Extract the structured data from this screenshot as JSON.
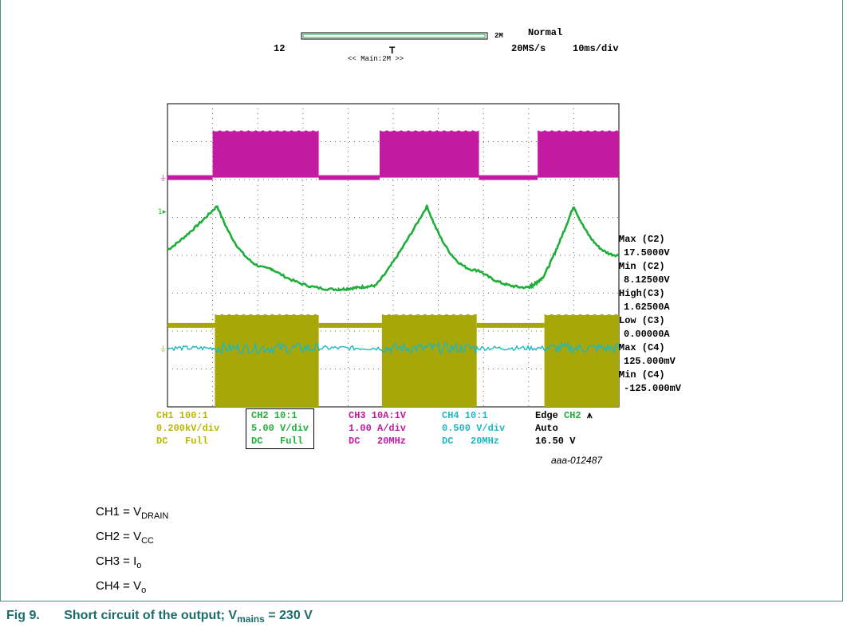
{
  "scope": {
    "header": {
      "left_num": "12",
      "acq_mode": "Normal",
      "sample_rate": "20MS/s",
      "timebase": "10ms/div",
      "record_label": "2M",
      "window_label": "<< Main:2M >>"
    },
    "measurements": [
      {
        "label": "Max (C2)",
        "value": "17.5000V"
      },
      {
        "label": "Min (C2)",
        "value": "8.12500V"
      },
      {
        "label": "High(C3)",
        "value": "1.62500A"
      },
      {
        "label": "Low (C3)",
        "value": "0.00000A"
      },
      {
        "label": "Max (C4)",
        "value": "125.000mV"
      },
      {
        "label": "Min (C4)",
        "value": "-125.000mV"
      }
    ],
    "channels": [
      {
        "line1": "CH1 100:1",
        "line2": "0.200kV/div",
        "line3": "DC   Full",
        "color": "#b8b800"
      },
      {
        "line1": "CH2 10:1",
        "line2": "5.00 V/div",
        "line3": "DC   Full",
        "color": "#1fae3a"
      },
      {
        "line1": "CH3 10A:1V",
        "line2": "1.00 A/div",
        "line3": "DC   20MHz",
        "color": "#c21aa0"
      },
      {
        "line1": "CH4 10:1",
        "line2": "0.500 V/div",
        "line3": "DC   20MHz",
        "color": "#1cb8c2"
      }
    ],
    "trigger": {
      "line1": "Edge",
      "source": "CH2",
      "line2": "Auto",
      "line3": "16.50 V"
    },
    "figure_id": "aaa-012487"
  },
  "legend": [
    {
      "pre": "CH1 = V",
      "sub": "DRAIN"
    },
    {
      "pre": "CH2 = V",
      "sub": "CC"
    },
    {
      "pre": "CH3 = I",
      "sub": "o"
    },
    {
      "pre": "CH4 = V",
      "sub": "o"
    }
  ],
  "caption": {
    "fig": "Fig 9.",
    "text": "Short circuit of the output; V",
    "sub": "mains",
    "tail": " = 230 V"
  },
  "chart_data": {
    "type": "line",
    "xlabel": "",
    "ylabel": "",
    "time_per_div_ms": 10,
    "divisions": {
      "x": 10,
      "y": 8
    },
    "grid": true,
    "series": [
      {
        "name": "CH3",
        "color": "#c21aa0",
        "kind": "burst",
        "segments_div": [
          [
            1.0,
            3.35
          ],
          [
            4.7,
            6.9
          ],
          [
            8.2,
            10.0
          ]
        ],
        "baseline_div": 6.05,
        "burst_low_div": 6.05,
        "burst_high_div": 7.3
      },
      {
        "name": "CH2",
        "color": "#1fae3a",
        "kind": "ramp",
        "points_div": [
          [
            0,
            4.15
          ],
          [
            1.1,
            5.3
          ],
          [
            2.3,
            3.65
          ],
          [
            3.8,
            3.1
          ],
          [
            4.6,
            3.2
          ],
          [
            5.75,
            5.3
          ],
          [
            6.9,
            3.6
          ],
          [
            8.0,
            3.15
          ],
          [
            8.3,
            3.4
          ],
          [
            9.0,
            5.3
          ],
          [
            10.0,
            4.0
          ]
        ]
      },
      {
        "name": "CH1",
        "color": "#a7a70a",
        "kind": "burst",
        "segments_div": [
          [
            1.05,
            3.35
          ],
          [
            4.75,
            6.85
          ],
          [
            8.35,
            10.0
          ]
        ],
        "baseline_div": 2.15,
        "burst_low_div": 0.0,
        "burst_high_div": 2.45
      },
      {
        "name": "CH4",
        "color": "#1cb8c2",
        "kind": "noise",
        "center_div": 1.55,
        "amplitude_div": 0.1
      }
    ]
  }
}
